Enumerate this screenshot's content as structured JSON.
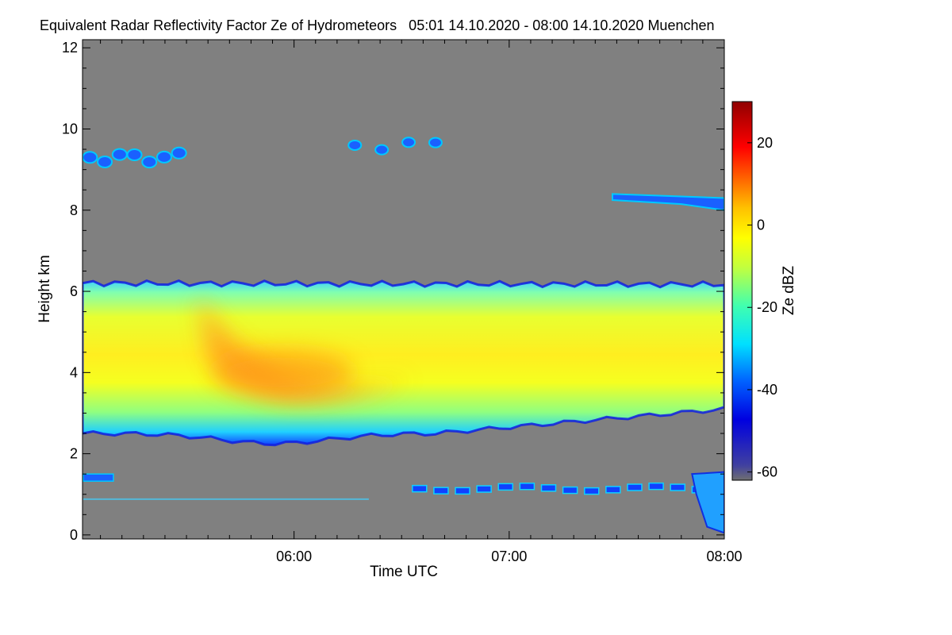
{
  "chart_data": {
    "type": "heatmap",
    "title": "Equivalent Radar Reflectivity Factor Ze of Hydrometeors   05:01 14.10.2020 - 08:00 14.10.2020 Muenchen",
    "xlabel": "Time UTC",
    "ylabel": "Height km",
    "x_range_hours": [
      5.0167,
      8.0
    ],
    "x_ticks": [
      {
        "value": 6.0,
        "label": "06:00"
      },
      {
        "value": 7.0,
        "label": "07:00"
      },
      {
        "value": 8.0,
        "label": "08:00"
      }
    ],
    "y_range": [
      -0.1,
      12.2
    ],
    "y_ticks": [
      0,
      2,
      4,
      6,
      8,
      10,
      12
    ],
    "colorbar": {
      "label": "Ze dBZ",
      "range": [
        -62,
        30
      ],
      "ticks": [
        -60,
        -40,
        -20,
        0,
        20
      ],
      "missing_color": "#808080"
    },
    "features": [
      {
        "name": "Main precipitation layer",
        "t_start": 5.0167,
        "t_end": 8.0,
        "base_km_start": 2.5,
        "base_km_end": 3.1,
        "top_km": 6.2,
        "ze_core_dbz": 8,
        "ze_edge_dbz": -40
      },
      {
        "name": "Enhanced core (bright band)",
        "t_center": 5.95,
        "height_km": 4.0,
        "ze_dbz": 10
      },
      {
        "name": "Cirrus 5:01-5:30",
        "t_start": 5.0167,
        "t_end": 5.5,
        "height_km": 9.3,
        "ze_dbz": -30
      },
      {
        "name": "Cirrus 6:15-6:45",
        "t_start": 6.22,
        "t_end": 6.72,
        "height_km": 9.6,
        "ze_dbz": -32
      },
      {
        "name": "Upper layer 7:30-8:00",
        "t_start": 7.48,
        "t_end": 8.0,
        "height_km": 8.2,
        "ze_dbz": -30
      },
      {
        "name": "Low-level echoes",
        "t_start": 6.55,
        "t_end": 8.0,
        "height_km": 1.1,
        "ze_dbz": -35
      }
    ]
  }
}
